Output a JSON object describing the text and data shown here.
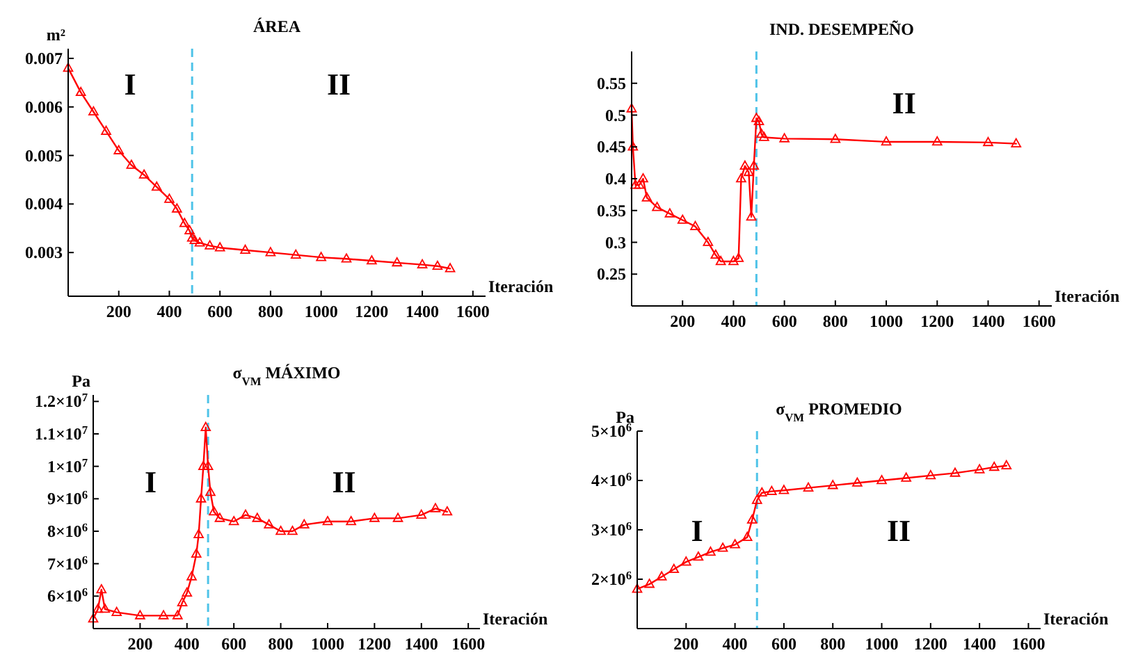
{
  "chart_data": [
    {
      "type": "line",
      "title": "ÁREA",
      "xlabel": "Iteración",
      "ylabel": "m²",
      "marker": "triangle",
      "line_style": "solid",
      "xlim": [
        0,
        1650
      ],
      "ylim": [
        0.0021,
        0.0072
      ],
      "xticks": [
        200,
        400,
        600,
        800,
        1000,
        1200,
        1400,
        1600
      ],
      "yticks": [
        0.003,
        0.004,
        0.005,
        0.006,
        0.007
      ],
      "x": [
        0,
        50,
        100,
        150,
        200,
        250,
        300,
        350,
        400,
        430,
        460,
        480,
        490,
        500,
        520,
        560,
        600,
        700,
        800,
        900,
        1000,
        1100,
        1200,
        1300,
        1400,
        1460,
        1510
      ],
      "series": [
        {
          "color": "#ff0000",
          "values": [
            0.0068,
            0.0063,
            0.0059,
            0.0055,
            0.0051,
            0.0048,
            0.0046,
            0.00435,
            0.0041,
            0.0039,
            0.0036,
            0.00345,
            0.0033,
            0.00325,
            0.0032,
            0.00314,
            0.0031,
            0.00305,
            0.003,
            0.00295,
            0.0029,
            0.00287,
            0.00283,
            0.00279,
            0.00275,
            0.00272,
            0.00267
          ]
        }
      ],
      "ref_lines": [
        {
          "axis": "x",
          "value": 490,
          "color": "#4fc3e8",
          "line_style": "dashed"
        }
      ],
      "annotations": [
        "I",
        "II"
      ]
    },
    {
      "type": "line",
      "title": "IND. DESEMPEÑO",
      "xlabel": "Iteración",
      "marker": "triangle",
      "line_style": "solid",
      "xlim": [
        0,
        1650
      ],
      "ylim": [
        0.2,
        0.6
      ],
      "xticks": [
        200,
        400,
        600,
        800,
        1000,
        1200,
        1400,
        1600
      ],
      "yticks": [
        0.25,
        0.3,
        0.35,
        0.4,
        0.45,
        0.5,
        0.55
      ],
      "x": [
        0,
        5,
        15,
        30,
        45,
        60,
        100,
        150,
        200,
        250,
        300,
        330,
        350,
        400,
        420,
        430,
        445,
        460,
        470,
        480,
        490,
        500,
        510,
        520,
        600,
        800,
        1000,
        1200,
        1400,
        1510
      ],
      "series": [
        {
          "color": "#ff0000",
          "values": [
            0.51,
            0.45,
            0.39,
            0.39,
            0.4,
            0.37,
            0.355,
            0.345,
            0.335,
            0.325,
            0.3,
            0.28,
            0.27,
            0.27,
            0.275,
            0.4,
            0.42,
            0.41,
            0.34,
            0.42,
            0.495,
            0.49,
            0.47,
            0.465,
            0.463,
            0.462,
            0.458,
            0.458,
            0.457,
            0.455
          ]
        }
      ],
      "ref_lines": [
        {
          "axis": "x",
          "value": 490,
          "color": "#4fc3e8",
          "line_style": "dashed"
        }
      ],
      "annotations": [
        "II"
      ]
    },
    {
      "type": "line",
      "title": "σ$_{VM}$ MÁXIMO",
      "xlabel": "Iteración",
      "ylabel": "Pa",
      "marker": "triangle",
      "line_style": "solid",
      "xlim": [
        0,
        1650
      ],
      "ylim": [
        5000000,
        12200000
      ],
      "xticks": [
        200,
        400,
        600,
        800,
        1000,
        1200,
        1400,
        1600
      ],
      "yticks": [
        {
          "value": 6000000,
          "label": "6×10$^{6}$"
        },
        {
          "value": 7000000,
          "label": "7×10$^{6}$"
        },
        {
          "value": 8000000,
          "label": "8×10$^{6}$"
        },
        {
          "value": 9000000,
          "label": "9×10$^{6}$"
        },
        {
          "value": 10000000,
          "label": "1×10$^{7}$"
        },
        {
          "value": 11000000,
          "label": "1.1×10$^{7}$"
        },
        {
          "value": 12000000,
          "label": "1.2×10$^{7}$"
        }
      ],
      "x": [
        0,
        20,
        35,
        50,
        100,
        200,
        300,
        360,
        380,
        400,
        420,
        440,
        450,
        460,
        470,
        480,
        490,
        500,
        515,
        540,
        600,
        650,
        700,
        750,
        800,
        850,
        900,
        1000,
        1100,
        1200,
        1300,
        1400,
        1460,
        1510
      ],
      "series": [
        {
          "color": "#ff0000",
          "values": [
            5300000,
            5600000,
            6200000,
            5600000,
            5500000,
            5400000,
            5400000,
            5400000,
            5800000,
            6100000,
            6600000,
            7300000,
            7900000,
            9000000,
            10000000,
            11200000,
            10000000,
            9200000,
            8600000,
            8400000,
            8300000,
            8500000,
            8400000,
            8200000,
            8000000,
            8000000,
            8200000,
            8300000,
            8300000,
            8400000,
            8400000,
            8500000,
            8700000,
            8600000
          ]
        }
      ],
      "ref_lines": [
        {
          "axis": "x",
          "value": 490,
          "color": "#4fc3e8",
          "line_style": "dashed"
        }
      ],
      "annotations": [
        "I",
        "II"
      ]
    },
    {
      "type": "line",
      "title": "σ$_{VM}$ PROMEDIO",
      "xlabel": "Iteración",
      "ylabel": "Pa",
      "marker": "triangle",
      "line_style": "solid",
      "xlim": [
        0,
        1650
      ],
      "ylim": [
        1000000,
        5000000
      ],
      "xticks": [
        200,
        400,
        600,
        800,
        1000,
        1200,
        1400,
        1600
      ],
      "yticks": [
        {
          "value": 2000000,
          "label": "2×10$^{6}$"
        },
        {
          "value": 3000000,
          "label": "3×10$^{6}$"
        },
        {
          "value": 4000000,
          "label": "4×10$^{6}$"
        },
        {
          "value": 5000000,
          "label": "5×10$^{6}$"
        }
      ],
      "x": [
        0,
        50,
        100,
        150,
        200,
        250,
        300,
        350,
        400,
        450,
        470,
        490,
        510,
        550,
        600,
        700,
        800,
        900,
        1000,
        1100,
        1200,
        1300,
        1400,
        1460,
        1510
      ],
      "series": [
        {
          "color": "#ff0000",
          "values": [
            1800000,
            1900000,
            2050000,
            2200000,
            2350000,
            2450000,
            2550000,
            2630000,
            2700000,
            2850000,
            3200000,
            3600000,
            3750000,
            3780000,
            3800000,
            3850000,
            3900000,
            3950000,
            4000000,
            4050000,
            4100000,
            4150000,
            4220000,
            4270000,
            4300000
          ]
        }
      ],
      "ref_lines": [
        {
          "axis": "x",
          "value": 490,
          "color": "#4fc3e8",
          "line_style": "dashed"
        }
      ],
      "annotations": [
        "I",
        "II"
      ]
    }
  ]
}
